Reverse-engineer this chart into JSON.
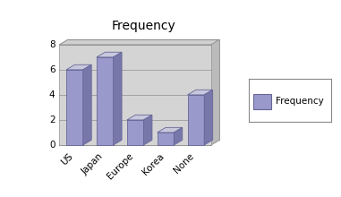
{
  "categories": [
    "US",
    "Japan",
    "Europe",
    "Korea",
    "None"
  ],
  "values": [
    6,
    7,
    2,
    1,
    4
  ],
  "bar_color_front": "#9999cc",
  "bar_color_top": "#ccccee",
  "bar_color_side": "#6666aa",
  "bar_color_shadow": "#888899",
  "title": "Frequency",
  "title_fontsize": 10,
  "ylim": [
    0,
    8
  ],
  "yticks": [
    0,
    2,
    4,
    6,
    8
  ],
  "legend_label": "Frequency",
  "plot_bg_top": "#c0c0c0",
  "plot_bg_bottom": "#aaaaaa",
  "floor_color": "#999999",
  "outer_background": "#ffffff",
  "bar_width": 0.55,
  "depth": 0.18
}
